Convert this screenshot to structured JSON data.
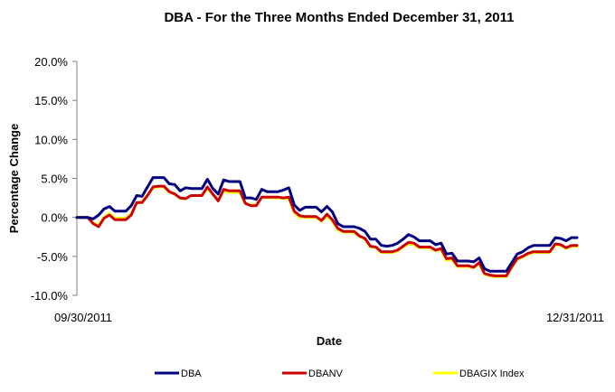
{
  "chart_data": {
    "type": "line",
    "title": "DBA - For the Three Months Ended December 31, 2011",
    "xlabel": "Date",
    "ylabel": "Percentage Change",
    "x_tick_labels": [
      "09/30/2011",
      "12/31/2011"
    ],
    "y_tick_labels": [
      "20.0%",
      "15.0%",
      "10.0%",
      "5.0%",
      "0.0%",
      "-5.0%",
      "-10.0%"
    ],
    "y_tick_values": [
      20,
      15,
      10,
      5,
      0,
      -5,
      -10
    ],
    "ylim": [
      -10,
      20
    ],
    "grid": false,
    "legend_position": "bottom",
    "series": [
      {
        "name": "DBA",
        "color": "#000080",
        "values": [
          0.0,
          0.0,
          0.0,
          -0.2,
          0.3,
          1.1,
          1.4,
          0.8,
          0.8,
          0.8,
          1.5,
          2.8,
          2.7,
          3.9,
          5.1,
          5.1,
          5.1,
          4.3,
          4.2,
          3.4,
          3.8,
          3.7,
          3.7,
          3.7,
          4.9,
          3.7,
          3.0,
          4.8,
          4.6,
          4.6,
          4.6,
          2.5,
          2.5,
          2.3,
          3.6,
          3.3,
          3.3,
          3.3,
          3.5,
          3.8,
          1.6,
          0.9,
          1.3,
          1.3,
          1.3,
          0.7,
          1.4,
          0.7,
          -0.8,
          -1.2,
          -1.2,
          -1.2,
          -1.4,
          -1.8,
          -2.8,
          -2.8,
          -3.6,
          -3.7,
          -3.6,
          -3.3,
          -2.8,
          -2.2,
          -2.5,
          -3.0,
          -3.0,
          -3.0,
          -3.5,
          -3.3,
          -4.7,
          -4.6,
          -5.6,
          -5.6,
          -5.6,
          -5.7,
          -5.2,
          -6.6,
          -6.9,
          -6.9,
          -6.9,
          -6.9,
          -5.8,
          -4.7,
          -4.4,
          -3.9,
          -3.6,
          -3.6,
          -3.6,
          -3.6,
          -2.6,
          -2.7,
          -3.0,
          -2.6,
          -2.6
        ]
      },
      {
        "name": "DBANV",
        "color": "#cc0000",
        "values": [
          0.0,
          0.0,
          0.0,
          -0.8,
          -1.2,
          -0.1,
          0.3,
          -0.3,
          -0.3,
          -0.3,
          0.3,
          1.9,
          1.9,
          2.8,
          3.9,
          4.0,
          4.0,
          3.3,
          3.0,
          2.5,
          2.4,
          2.8,
          2.8,
          2.8,
          3.9,
          3.0,
          2.1,
          3.6,
          3.4,
          3.4,
          3.4,
          1.8,
          1.5,
          1.5,
          2.6,
          2.6,
          2.6,
          2.6,
          2.5,
          2.6,
          0.8,
          0.2,
          0.1,
          0.1,
          0.1,
          -0.4,
          0.4,
          -0.3,
          -1.4,
          -1.8,
          -1.8,
          -1.8,
          -2.4,
          -2.7,
          -3.7,
          -3.8,
          -4.4,
          -4.4,
          -4.4,
          -4.2,
          -3.7,
          -3.2,
          -3.3,
          -3.8,
          -3.8,
          -3.8,
          -4.2,
          -4.0,
          -5.3,
          -5.2,
          -6.2,
          -6.2,
          -6.2,
          -6.4,
          -5.8,
          -7.2,
          -7.4,
          -7.5,
          -7.5,
          -7.5,
          -6.3,
          -5.3,
          -5.0,
          -4.6,
          -4.4,
          -4.4,
          -4.4,
          -4.4,
          -3.4,
          -3.5,
          -3.9,
          -3.6,
          -3.6
        ]
      },
      {
        "name": "DBAGIX Index",
        "color": "#ffff00",
        "values": [
          0.0,
          0.0,
          0.0,
          -0.7,
          -1.0,
          0.0,
          0.5,
          -0.1,
          -0.1,
          -0.1,
          0.5,
          1.8,
          2.0,
          2.9,
          3.8,
          3.9,
          3.9,
          3.2,
          3.0,
          2.4,
          2.4,
          2.8,
          2.8,
          2.8,
          3.8,
          2.9,
          2.2,
          3.4,
          3.2,
          3.2,
          3.2,
          1.8,
          1.6,
          1.6,
          2.6,
          2.5,
          2.5,
          2.5,
          2.4,
          2.4,
          0.6,
          0.0,
          0.0,
          0.0,
          0.0,
          -0.5,
          0.2,
          -0.5,
          -1.6,
          -1.9,
          -1.9,
          -1.9,
          -2.5,
          -2.8,
          -3.8,
          -3.9,
          -4.5,
          -4.5,
          -4.5,
          -4.3,
          -3.8,
          -3.4,
          -3.5,
          -3.9,
          -3.9,
          -3.9,
          -4.3,
          -4.1,
          -5.5,
          -5.4,
          -6.3,
          -6.3,
          -6.3,
          -6.5,
          -5.9,
          -7.3,
          -7.5,
          -7.6,
          -7.6,
          -7.6,
          -6.4,
          -5.4,
          -5.1,
          -4.7,
          -4.5,
          -4.5,
          -4.5,
          -4.5,
          -3.5,
          -3.6,
          -4.0,
          -3.7,
          -3.7
        ]
      }
    ]
  }
}
